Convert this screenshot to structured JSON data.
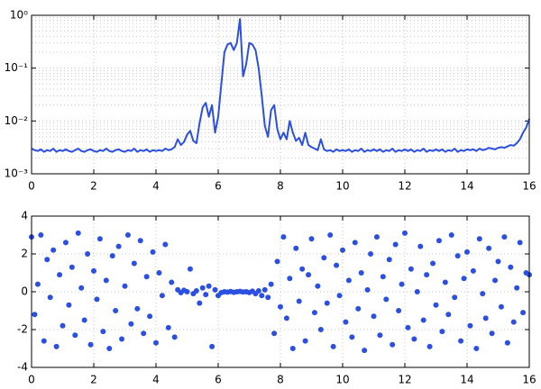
{
  "chart_data": [
    {
      "type": "line",
      "log_y": true,
      "grid": true,
      "minor_grid": true,
      "color": "#2b4fe0",
      "xlim": [
        0,
        16
      ],
      "xticks": [
        0,
        2,
        4,
        6,
        8,
        10,
        12,
        14,
        16
      ],
      "ylim": [
        0.001,
        1
      ],
      "yticks": [
        {
          "value": 0.001,
          "label": "10⁻³"
        },
        {
          "value": 0.01,
          "label": "10⁻²"
        },
        {
          "value": 0.1,
          "label": "10⁻¹"
        },
        {
          "value": 1,
          "label": "10⁰"
        }
      ],
      "x": [
        0,
        0.1,
        0.2,
        0.3,
        0.4,
        0.5,
        0.6,
        0.7,
        0.8,
        0.9,
        1,
        1.1,
        1.2,
        1.3,
        1.4,
        1.5,
        1.6,
        1.7,
        1.8,
        1.9,
        2,
        2.1,
        2.2,
        2.3,
        2.4,
        2.5,
        2.6,
        2.7,
        2.8,
        2.9,
        3,
        3.1,
        3.2,
        3.3,
        3.4,
        3.5,
        3.6,
        3.7,
        3.8,
        3.9,
        4,
        4.1,
        4.2,
        4.3,
        4.4,
        4.5,
        4.6,
        4.7,
        4.8,
        4.9,
        5,
        5.1,
        5.2,
        5.3,
        5.4,
        5.5,
        5.6,
        5.7,
        5.8,
        5.9,
        6,
        6.1,
        6.2,
        6.3,
        6.4,
        6.5,
        6.6,
        6.7,
        6.8,
        6.9,
        7,
        7.1,
        7.2,
        7.3,
        7.4,
        7.5,
        7.6,
        7.7,
        7.8,
        7.9,
        8,
        8.1,
        8.2,
        8.3,
        8.4,
        8.5,
        8.6,
        8.7,
        8.8,
        8.9,
        9,
        9.1,
        9.2,
        9.3,
        9.4,
        9.5,
        9.6,
        9.7,
        9.8,
        9.9,
        10,
        10.1,
        10.2,
        10.3,
        10.4,
        10.5,
        10.6,
        10.7,
        10.8,
        10.9,
        11,
        11.1,
        11.2,
        11.3,
        11.4,
        11.5,
        11.6,
        11.7,
        11.8,
        11.9,
        12,
        12.1,
        12.2,
        12.3,
        12.4,
        12.5,
        12.6,
        12.7,
        12.8,
        12.9,
        13,
        13.1,
        13.2,
        13.3,
        13.4,
        13.5,
        13.6,
        13.7,
        13.8,
        13.9,
        14,
        14.1,
        14.2,
        14.3,
        14.4,
        14.5,
        14.6,
        14.7,
        14.8,
        14.9,
        15,
        15.1,
        15.2,
        15.3,
        15.4,
        15.5,
        15.6,
        15.7,
        15.8,
        15.9,
        16
      ],
      "values": [
        0.003,
        0.0028,
        0.0027,
        0.0029,
        0.0026,
        0.0028,
        0.0027,
        0.003,
        0.0026,
        0.0028,
        0.0027,
        0.0029,
        0.0027,
        0.0026,
        0.0028,
        0.003,
        0.0027,
        0.0026,
        0.0028,
        0.0029,
        0.0027,
        0.0026,
        0.0028,
        0.0027,
        0.003,
        0.0027,
        0.0026,
        0.0028,
        0.0029,
        0.0027,
        0.0026,
        0.0028,
        0.0027,
        0.003,
        0.0026,
        0.0028,
        0.0027,
        0.0029,
        0.0026,
        0.0028,
        0.0027,
        0.0028,
        0.0027,
        0.003,
        0.0028,
        0.0029,
        0.0032,
        0.0045,
        0.0035,
        0.004,
        0.0055,
        0.0065,
        0.0042,
        0.0038,
        0.009,
        0.018,
        0.022,
        0.012,
        0.02,
        0.006,
        0.012,
        0.05,
        0.2,
        0.28,
        0.3,
        0.22,
        0.3,
        0.85,
        0.07,
        0.12,
        0.3,
        0.28,
        0.22,
        0.1,
        0.03,
        0.008,
        0.005,
        0.016,
        0.02,
        0.007,
        0.0045,
        0.006,
        0.0045,
        0.01,
        0.006,
        0.0042,
        0.0048,
        0.0035,
        0.006,
        0.0035,
        0.0032,
        0.003,
        0.0028,
        0.0045,
        0.0029,
        0.0027,
        0.0028,
        0.0026,
        0.0029,
        0.0027,
        0.0028,
        0.0027,
        0.0029,
        0.0026,
        0.0028,
        0.0027,
        0.003,
        0.0026,
        0.0028,
        0.0027,
        0.0029,
        0.0027,
        0.0029,
        0.0026,
        0.0028,
        0.0027,
        0.003,
        0.0026,
        0.0028,
        0.0027,
        0.0029,
        0.0027,
        0.0029,
        0.0026,
        0.0028,
        0.0027,
        0.003,
        0.0026,
        0.0028,
        0.0027,
        0.0029,
        0.0027,
        0.0029,
        0.0026,
        0.0028,
        0.0027,
        0.003,
        0.0026,
        0.0028,
        0.0027,
        0.0029,
        0.0028,
        0.0029,
        0.0027,
        0.003,
        0.0028,
        0.0029,
        0.0031,
        0.003,
        0.0029,
        0.0031,
        0.0032,
        0.0031,
        0.0033,
        0.0035,
        0.0034,
        0.0038,
        0.0045,
        0.006,
        0.0075,
        0.011
      ]
    },
    {
      "type": "scatter",
      "grid": true,
      "color": "#2b4fe0",
      "xlim": [
        0,
        16
      ],
      "xticks": [
        0,
        2,
        4,
        6,
        8,
        10,
        12,
        14,
        16
      ],
      "ylim": [
        -4,
        4
      ],
      "yticks": [
        -4,
        -2,
        0,
        2,
        4
      ],
      "x": [
        0,
        0.1,
        0.2,
        0.3,
        0.4,
        0.5,
        0.6,
        0.7,
        0.8,
        0.9,
        1,
        1.1,
        1.2,
        1.3,
        1.4,
        1.5,
        1.6,
        1.7,
        1.8,
        1.9,
        2,
        2.1,
        2.2,
        2.3,
        2.4,
        2.5,
        2.6,
        2.7,
        2.8,
        2.9,
        3,
        3.1,
        3.2,
        3.3,
        3.4,
        3.5,
        3.6,
        3.7,
        3.8,
        3.9,
        4,
        4.1,
        4.2,
        4.3,
        4.4,
        4.5,
        4.6,
        4.7,
        4.8,
        4.9,
        5,
        5.1,
        5.2,
        5.3,
        5.4,
        5.5,
        5.6,
        5.7,
        5.8,
        5.9,
        6,
        6.1,
        6.2,
        6.3,
        6.4,
        6.5,
        6.6,
        6.7,
        6.8,
        6.9,
        7,
        7.1,
        7.2,
        7.3,
        7.4,
        7.5,
        7.6,
        7.7,
        7.8,
        7.9,
        8,
        8.1,
        8.2,
        8.3,
        8.4,
        8.5,
        8.6,
        8.7,
        8.8,
        8.9,
        9,
        9.1,
        9.2,
        9.3,
        9.4,
        9.5,
        9.6,
        9.7,
        9.8,
        9.9,
        10,
        10.1,
        10.2,
        10.3,
        10.4,
        10.5,
        10.6,
        10.7,
        10.8,
        10.9,
        11,
        11.1,
        11.2,
        11.3,
        11.4,
        11.5,
        11.6,
        11.7,
        11.8,
        11.9,
        12,
        12.1,
        12.2,
        12.3,
        12.4,
        12.5,
        12.6,
        12.7,
        12.8,
        12.9,
        13,
        13.1,
        13.2,
        13.3,
        13.4,
        13.5,
        13.6,
        13.7,
        13.8,
        13.9,
        14,
        14.1,
        14.2,
        14.3,
        14.4,
        14.5,
        14.6,
        14.7,
        14.8,
        14.9,
        15,
        15.1,
        15.2,
        15.3,
        15.4,
        15.5,
        15.6,
        15.7,
        15.8,
        15.9,
        16
      ],
      "values": [
        2.9,
        -1.2,
        0.4,
        3.0,
        -2.6,
        1.7,
        -0.3,
        2.2,
        -2.9,
        0.9,
        -1.8,
        2.6,
        -0.7,
        1.3,
        -2.3,
        3.1,
        0.2,
        -1.5,
        2.0,
        -2.8,
        1.1,
        -0.4,
        2.8,
        -2.1,
        0.6,
        -3.0,
        1.9,
        -1.0,
        2.4,
        -2.5,
        0.3,
        3.0,
        -1.7,
        1.5,
        -0.9,
        2.7,
        -2.2,
        0.8,
        -1.3,
        2.1,
        -2.7,
        1.0,
        -0.2,
        2.5,
        -1.9,
        0.5,
        -2.4,
        0.1,
        -0.05,
        0.08,
        0.0,
        1.2,
        -0.1,
        0.05,
        -0.6,
        0.2,
        -0.15,
        0.3,
        -2.9,
        0.1,
        -0.2,
        -0.05,
        0.0,
        -0.02,
        0.01,
        -0.03,
        0.0,
        0.02,
        -0.01,
        0.0,
        -0.04,
        0.03,
        -0.1,
        0.05,
        -0.2,
        0.1,
        -0.3,
        0.4,
        -2.2,
        1.6,
        -0.8,
        2.9,
        -1.4,
        0.7,
        -3.0,
        2.3,
        -0.5,
        1.2,
        -2.6,
        0.9,
        2.8,
        -1.1,
        0.3,
        -2.0,
        1.8,
        -0.6,
        3.0,
        -2.9,
        1.4,
        -0.2,
        2.2,
        -1.6,
        0.6,
        -2.4,
        2.6,
        -0.9,
        1.0,
        -3.1,
        0.1,
        2.0,
        -1.3,
        2.9,
        -2.3,
        0.8,
        -0.4,
        1.7,
        -2.8,
        2.5,
        -1.0,
        0.4,
        3.1,
        -1.9,
        1.2,
        -2.5,
        0.0,
        2.4,
        -1.5,
        0.9,
        -2.9,
        1.5,
        -0.7,
        2.7,
        -2.1,
        0.5,
        -1.2,
        3.0,
        -0.3,
        1.9,
        -2.6,
        0.7,
        2.1,
        -1.8,
        1.1,
        -3.0,
        2.8,
        -0.1,
        -1.4,
        2.3,
        -2.2,
        0.6,
        1.6,
        -0.8,
        2.9,
        -2.7,
        1.3,
        -1.6,
        0.2,
        2.6,
        -1.1,
        1.0,
        0.9
      ]
    }
  ]
}
